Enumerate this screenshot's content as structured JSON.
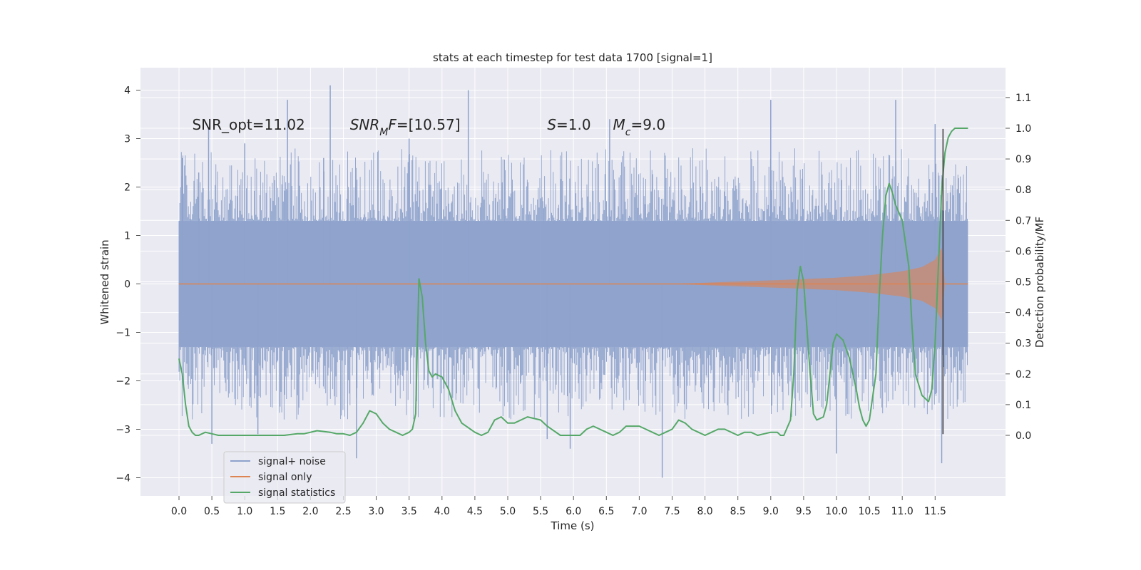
{
  "chart_data": {
    "type": "line",
    "title": "stats at each timestep for test data 1700 [signal=1]",
    "xlabel": "Time (s)",
    "ylabel": "Whitened strain",
    "ylabel_right": "Detection probability/MF",
    "xlim": [
      -0.6,
      12.6
    ],
    "ylim": [
      -4.4,
      4.5
    ],
    "ylim_right": [
      -0.2,
      1.2
    ],
    "x_ticks": [
      "0.0",
      "0.5",
      "1.0",
      "1.5",
      "2.0",
      "2.5",
      "3.0",
      "3.5",
      "4.0",
      "4.5",
      "5.0",
      "5.5",
      "6.0",
      "6.5",
      "7.0",
      "7.5",
      "8.0",
      "8.5",
      "9.0",
      "9.5",
      "10.0",
      "10.5",
      "11.0",
      "11.5"
    ],
    "y_ticks": [
      "4",
      "3",
      "2",
      "1",
      "0",
      "−1",
      "−2",
      "−3",
      "−4"
    ],
    "y_ticks_right": [
      "1.1",
      "1.0",
      "0.9",
      "0.8",
      "0.7",
      "0.6",
      "0.5",
      "0.4",
      "0.3",
      "0.2",
      "0.1",
      "0.0"
    ],
    "grid": true,
    "legend_position": "lower-left",
    "annotations": [
      {
        "text": "SNR_opt=11.02",
        "x": 0.2,
        "y": 3.3
      },
      {
        "text": "SNR_MF=[10.57]",
        "x": 2.6,
        "y": 3.3
      },
      {
        "text": "S=1.0",
        "x": 5.6,
        "y": 3.3
      },
      {
        "text": "M_c=9.0",
        "x": 6.6,
        "y": 3.3
      }
    ],
    "series": [
      {
        "name": "signal+ noise",
        "color": "#8ea2cc",
        "axis": "left",
        "x_range": [
          0.0,
          12.0
        ],
        "envelope_upper": 1.3,
        "envelope_lower": -1.3,
        "spike_peaks": [
          {
            "x": 0.05,
            "y": 2.6
          },
          {
            "x": 0.3,
            "y": 2.3
          },
          {
            "x": 0.45,
            "y": 3.2
          },
          {
            "x": 1.0,
            "y": 2.9
          },
          {
            "x": 1.65,
            "y": 3.8
          },
          {
            "x": 2.2,
            "y": 2.6
          },
          {
            "x": 2.3,
            "y": 4.1
          },
          {
            "x": 3.5,
            "y": 3.0
          },
          {
            "x": 4.4,
            "y": 4.0
          },
          {
            "x": 6.55,
            "y": 3.4
          },
          {
            "x": 9.0,
            "y": 3.8
          },
          {
            "x": 10.9,
            "y": 3.8
          },
          {
            "x": 11.5,
            "y": 3.3
          },
          {
            "x": 0.5,
            "y": -3.3
          },
          {
            "x": 1.2,
            "y": -3.1
          },
          {
            "x": 2.7,
            "y": -3.6
          },
          {
            "x": 5.6,
            "y": -3.2
          },
          {
            "x": 5.95,
            "y": -3.4
          },
          {
            "x": 7.35,
            "y": -4.0
          },
          {
            "x": 10.0,
            "y": -3.5
          },
          {
            "x": 11.6,
            "y": -3.7
          }
        ]
      },
      {
        "name": "signal only",
        "color": "#dd8452",
        "axis": "left",
        "x": [
          0.0,
          7.5,
          8.5,
          9.5,
          10.0,
          10.5,
          11.0,
          11.3,
          11.5,
          11.6,
          11.65,
          12.0
        ],
        "amplitude": [
          0.0,
          0.0,
          0.05,
          0.1,
          0.13,
          0.18,
          0.26,
          0.35,
          0.5,
          0.75,
          0.0,
          0.0
        ]
      },
      {
        "name": "signal statistics",
        "color": "#55a868",
        "axis": "right",
        "x": [
          0.0,
          0.05,
          0.1,
          0.15,
          0.2,
          0.25,
          0.3,
          0.4,
          0.5,
          0.6,
          0.8,
          1.0,
          1.2,
          1.4,
          1.6,
          1.8,
          1.9,
          2.0,
          2.1,
          2.3,
          2.4,
          2.5,
          2.6,
          2.7,
          2.8,
          2.9,
          3.0,
          3.1,
          3.2,
          3.3,
          3.4,
          3.5,
          3.55,
          3.6,
          3.65,
          3.7,
          3.75,
          3.8,
          3.85,
          3.9,
          4.0,
          4.1,
          4.2,
          4.3,
          4.5,
          4.6,
          4.7,
          4.8,
          4.9,
          5.0,
          5.1,
          5.2,
          5.3,
          5.5,
          5.6,
          5.8,
          6.0,
          6.1,
          6.2,
          6.3,
          6.4,
          6.5,
          6.6,
          6.7,
          6.8,
          7.0,
          7.1,
          7.2,
          7.3,
          7.4,
          7.5,
          7.6,
          7.7,
          7.8,
          7.9,
          8.0,
          8.1,
          8.2,
          8.3,
          8.5,
          8.6,
          8.7,
          8.8,
          9.0,
          9.1,
          9.15,
          9.2,
          9.3,
          9.35,
          9.4,
          9.45,
          9.5,
          9.55,
          9.6,
          9.65,
          9.7,
          9.8,
          9.85,
          9.9,
          9.95,
          10.0,
          10.1,
          10.2,
          10.3,
          10.35,
          10.4,
          10.45,
          10.5,
          10.6,
          10.65,
          10.7,
          10.75,
          10.8,
          10.85,
          10.9,
          11.0,
          11.1,
          11.15,
          11.2,
          11.3,
          11.4,
          11.45,
          11.5,
          11.55,
          11.6,
          11.65,
          11.7,
          11.75,
          11.8,
          11.85,
          11.9,
          12.0
        ],
        "values": [
          0.25,
          0.2,
          0.1,
          0.03,
          0.01,
          0.0,
          0.0,
          0.01,
          0.005,
          0.0,
          0.0,
          0.0,
          0.0,
          0.0,
          0.0,
          0.005,
          0.005,
          0.01,
          0.015,
          0.01,
          0.005,
          0.005,
          0.0,
          0.01,
          0.04,
          0.08,
          0.07,
          0.04,
          0.02,
          0.01,
          0.0,
          0.01,
          0.02,
          0.07,
          0.51,
          0.45,
          0.3,
          0.21,
          0.19,
          0.2,
          0.19,
          0.15,
          0.08,
          0.04,
          0.01,
          0.0,
          0.01,
          0.05,
          0.06,
          0.04,
          0.04,
          0.05,
          0.06,
          0.05,
          0.03,
          0.0,
          0.0,
          0.0,
          0.02,
          0.03,
          0.02,
          0.01,
          0.0,
          0.01,
          0.03,
          0.03,
          0.02,
          0.01,
          0.0,
          0.01,
          0.02,
          0.05,
          0.04,
          0.02,
          0.01,
          0.0,
          0.01,
          0.02,
          0.02,
          0.0,
          0.01,
          0.01,
          0.0,
          0.01,
          0.01,
          0.0,
          0.0,
          0.05,
          0.2,
          0.47,
          0.55,
          0.5,
          0.35,
          0.2,
          0.07,
          0.05,
          0.06,
          0.1,
          0.2,
          0.3,
          0.33,
          0.31,
          0.25,
          0.15,
          0.09,
          0.05,
          0.03,
          0.05,
          0.2,
          0.45,
          0.65,
          0.78,
          0.82,
          0.79,
          0.75,
          0.7,
          0.55,
          0.35,
          0.2,
          0.13,
          0.11,
          0.15,
          0.3,
          0.55,
          0.8,
          0.92,
          0.97,
          0.99,
          1.0,
          1.0,
          1.0,
          1.0
        ]
      }
    ],
    "vertical_line": {
      "x": 11.62,
      "y_range": [
        -3.1,
        3.2
      ],
      "color": "#3a3a3a"
    }
  }
}
